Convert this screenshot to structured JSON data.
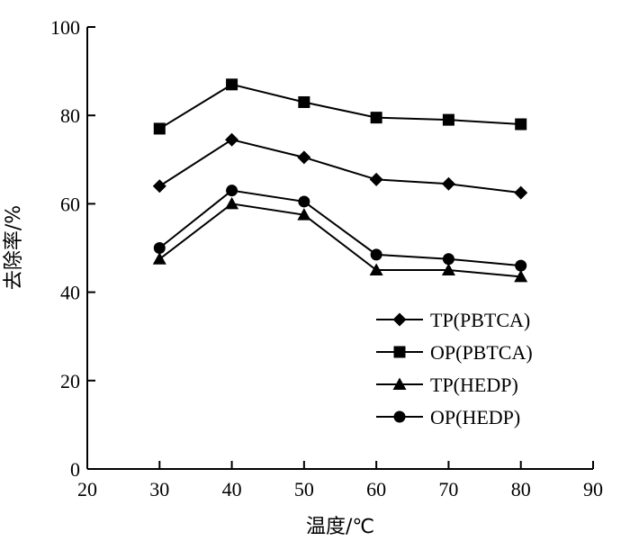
{
  "chart_data": {
    "type": "line",
    "xlabel": "温度/℃",
    "ylabel": "去除率/%",
    "xlim": [
      20,
      90
    ],
    "ylim": [
      0,
      100
    ],
    "x_ticks": [
      20,
      30,
      40,
      50,
      60,
      70,
      80,
      90
    ],
    "y_ticks": [
      0,
      20,
      40,
      60,
      80,
      100
    ],
    "grid": false,
    "legend_position": "bottom-right",
    "x": [
      30,
      40,
      50,
      60,
      70,
      80
    ],
    "series": [
      {
        "name": "TP(PBTCA)",
        "marker": "diamond",
        "values": [
          64,
          74.5,
          70.5,
          65.5,
          64.5,
          62.5
        ]
      },
      {
        "name": "OP(PBTCA)",
        "marker": "square",
        "values": [
          77,
          87,
          83,
          79.5,
          79,
          78
        ]
      },
      {
        "name": "TP(HEDP)",
        "marker": "triangle",
        "values": [
          47.5,
          60,
          57.5,
          45,
          45,
          43.5
        ]
      },
      {
        "name": "OP(HEDP)",
        "marker": "circle",
        "values": [
          50,
          63,
          60.5,
          48.5,
          47.5,
          46
        ]
      }
    ],
    "colors": {
      "line": "#000000",
      "marker": "#000000"
    }
  }
}
